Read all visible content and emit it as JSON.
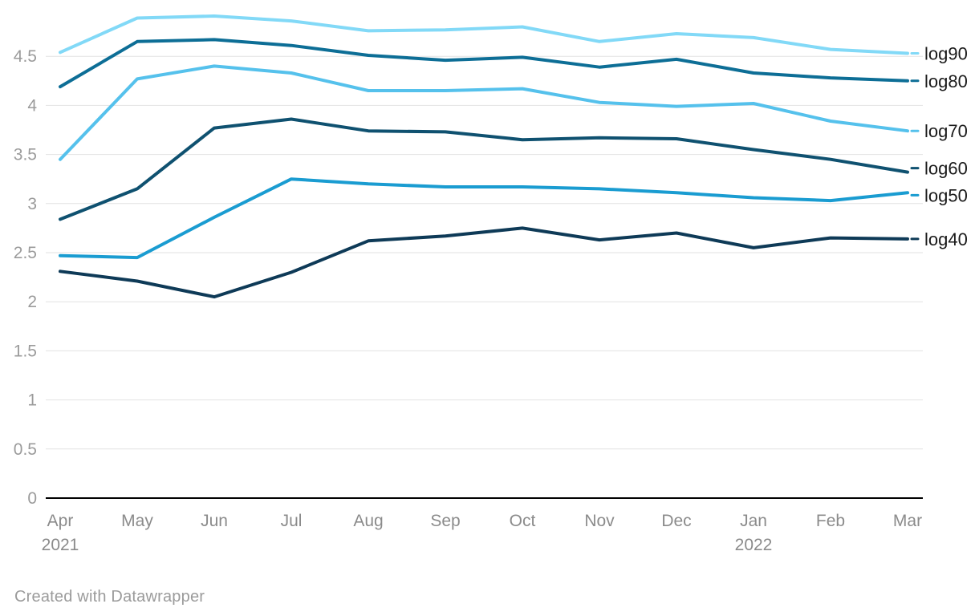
{
  "chart_data": {
    "type": "line",
    "title": "",
    "x_categories": [
      "Apr",
      "May",
      "Jun",
      "Jul",
      "Aug",
      "Sep",
      "Oct",
      "Nov",
      "Dec",
      "Jan",
      "Feb",
      "Mar"
    ],
    "x_year_labels": [
      {
        "index": 0,
        "label": "2021"
      },
      {
        "index": 9,
        "label": "2022"
      }
    ],
    "y_ticks": [
      0,
      0.5,
      1,
      1.5,
      2,
      2.5,
      3,
      3.5,
      4,
      4.5
    ],
    "ylim": [
      0,
      4.95
    ],
    "grid": true,
    "legend_position": "labels-at-line-ends-right",
    "series": [
      {
        "name": "log90",
        "color": "#82d9f7",
        "values": [
          4.54,
          4.89,
          4.91,
          4.86,
          4.76,
          4.77,
          4.8,
          4.65,
          4.73,
          4.69,
          4.57,
          4.53
        ]
      },
      {
        "name": "log80",
        "color": "#0d6e96",
        "values": [
          4.19,
          4.65,
          4.67,
          4.61,
          4.51,
          4.46,
          4.49,
          4.39,
          4.47,
          4.33,
          4.28,
          4.25
        ]
      },
      {
        "name": "log70",
        "color": "#55c1ec",
        "values": [
          3.45,
          4.27,
          4.4,
          4.33,
          4.15,
          4.15,
          4.17,
          4.03,
          3.99,
          4.02,
          3.84,
          3.74
        ]
      },
      {
        "name": "log60",
        "color": "#0f5170",
        "values": [
          2.84,
          3.15,
          3.77,
          3.86,
          3.74,
          3.73,
          3.65,
          3.67,
          3.66,
          3.55,
          3.45,
          3.32
        ]
      },
      {
        "name": "log50",
        "color": "#1a9cd1",
        "values": [
          2.47,
          2.45,
          2.86,
          3.25,
          3.2,
          3.17,
          3.17,
          3.15,
          3.11,
          3.06,
          3.03,
          3.11
        ]
      },
      {
        "name": "log40",
        "color": "#0e3a57",
        "values": [
          2.31,
          2.21,
          2.05,
          2.3,
          2.62,
          2.67,
          2.75,
          2.63,
          2.7,
          2.55,
          2.65,
          2.64
        ]
      }
    ]
  },
  "footer": {
    "credit": "Created with Datawrapper"
  },
  "colors": {
    "background": "#ffffff",
    "gridline": "#e2e2e2",
    "axis_line": "#000000",
    "tick_label": "#9b9b9b",
    "month_label": "#8b8b8b",
    "series_label": "#1a1a1a",
    "credit": "#9b9b9b"
  }
}
